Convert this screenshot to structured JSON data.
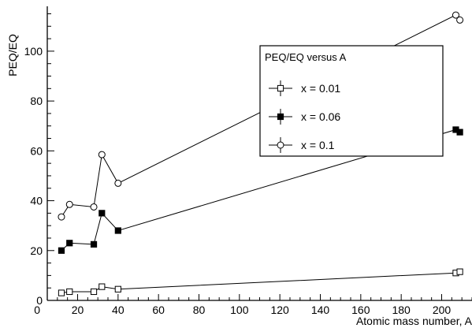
{
  "chart_data": {
    "type": "line",
    "xlabel": "Atomic mass number, A",
    "ylabel": "PEQ/EQ",
    "xlim": [
      5,
      215
    ],
    "ylim": [
      0,
      118
    ],
    "x_ticks": [
      0,
      20,
      40,
      60,
      80,
      100,
      120,
      140,
      160,
      180,
      200
    ],
    "y_ticks": [
      0,
      20,
      40,
      60,
      80,
      100
    ],
    "grid": false,
    "legend": {
      "title": "PEQ/EQ versus A",
      "placement": "top-right"
    },
    "series": [
      {
        "name": "x = 0.01",
        "marker": "open-square",
        "x": [
          12,
          16,
          28,
          32,
          40,
          207,
          209
        ],
        "y": [
          3,
          3.5,
          3.5,
          5.5,
          4.5,
          11,
          11.5
        ]
      },
      {
        "name": "x = 0.06",
        "marker": "filled-square",
        "x": [
          12,
          16,
          28,
          32,
          40,
          207,
          209
        ],
        "y": [
          20,
          23,
          22.5,
          35,
          28,
          68.5,
          67.5
        ]
      },
      {
        "name": "x = 0.1",
        "marker": "open-circle",
        "x": [
          12,
          16,
          28,
          32,
          40,
          207,
          209
        ],
        "y": [
          33.5,
          38.5,
          37.5,
          58.5,
          47,
          114.5,
          112.5
        ]
      }
    ]
  }
}
